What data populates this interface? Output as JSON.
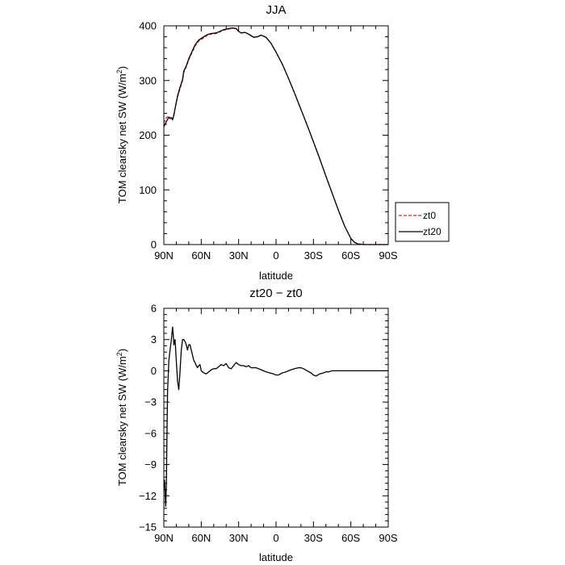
{
  "chart_data": [
    {
      "type": "line",
      "title": "JJA",
      "xlabel": "latitude",
      "ylabel": "TOM clearsky net SW (W/m",
      "ylabel_sup": "2",
      "ylabel_end": ")",
      "xlim": [
        90,
        -90
      ],
      "ylim": [
        0,
        400
      ],
      "xticks": [
        {
          "value": 90,
          "label": "90N"
        },
        {
          "value": 60,
          "label": "60N"
        },
        {
          "value": 30,
          "label": "30N"
        },
        {
          "value": 0,
          "label": "0"
        },
        {
          "value": -30,
          "label": "30S"
        },
        {
          "value": -60,
          "label": "60S"
        },
        {
          "value": -90,
          "label": "90S"
        }
      ],
      "yticks": [
        {
          "value": 0,
          "label": "0"
        },
        {
          "value": 100,
          "label": "100"
        },
        {
          "value": 200,
          "label": "200"
        },
        {
          "value": 300,
          "label": "300"
        },
        {
          "value": 400,
          "label": "400"
        }
      ],
      "legend_position": "outside-right",
      "series": [
        {
          "name": "zt0",
          "color": "#d62728",
          "dash": true,
          "x": [
            90,
            89,
            88,
            86,
            85,
            84,
            83,
            82,
            81,
            79,
            77,
            75,
            74,
            72,
            70,
            68,
            65,
            62,
            58,
            55,
            52,
            48,
            45,
            42,
            38,
            35,
            32,
            30,
            28,
            25,
            22,
            20,
            18,
            15,
            12,
            8,
            4,
            0,
            -5,
            -10,
            -15,
            -20,
            -25,
            -30,
            -35,
            -40,
            -45,
            -50,
            -55,
            -60,
            -63,
            -66,
            -70,
            -75,
            -80,
            -85,
            -90
          ],
          "y": [
            222,
            227,
            232,
            235,
            230,
            233,
            230,
            238,
            248,
            270,
            285,
            300,
            315,
            325,
            338,
            348,
            363,
            372,
            378,
            383,
            385,
            386,
            389,
            392,
            394,
            396,
            395,
            390,
            387,
            388,
            385,
            382,
            379,
            380,
            383,
            379,
            368,
            352,
            330,
            304,
            276,
            247,
            218,
            188,
            157,
            125,
            94,
            63,
            34,
            11,
            4,
            1,
            0,
            0,
            0,
            0,
            0
          ]
        },
        {
          "name": "zt20",
          "color": "#000000",
          "dash": false,
          "x": [
            90,
            89,
            88,
            86,
            85,
            84,
            83,
            82,
            81,
            79,
            77,
            75,
            74,
            72,
            70,
            68,
            65,
            62,
            58,
            55,
            52,
            48,
            45,
            42,
            38,
            35,
            32,
            30,
            28,
            25,
            22,
            20,
            18,
            15,
            12,
            8,
            4,
            0,
            -5,
            -10,
            -15,
            -20,
            -25,
            -30,
            -35,
            -40,
            -45,
            -50,
            -55,
            -60,
            -63,
            -66,
            -70,
            -75,
            -80,
            -85,
            -90
          ],
          "y": [
            215,
            220,
            225,
            233,
            231,
            232,
            228,
            236,
            249,
            272,
            288,
            302,
            317,
            327,
            340,
            350,
            365,
            374,
            380,
            384,
            386,
            387,
            390,
            393,
            395,
            396,
            395,
            390,
            387,
            388,
            385,
            382,
            379,
            380,
            383,
            379,
            368,
            352,
            330,
            304,
            276,
            247,
            218,
            188,
            157,
            125,
            94,
            63,
            34,
            11,
            4,
            1,
            0,
            0,
            0,
            0,
            0
          ]
        }
      ]
    },
    {
      "type": "line",
      "title": "zt20 − zt0",
      "xlabel": "latitude",
      "ylabel": "TOM clearsky net SW (W/m",
      "ylabel_sup": "2",
      "ylabel_end": ")",
      "xlim": [
        90,
        -90
      ],
      "ylim": [
        -15,
        6
      ],
      "xticks": [
        {
          "value": 90,
          "label": "90N"
        },
        {
          "value": 60,
          "label": "60N"
        },
        {
          "value": 30,
          "label": "30N"
        },
        {
          "value": 0,
          "label": "0"
        },
        {
          "value": -30,
          "label": "30S"
        },
        {
          "value": -60,
          "label": "60S"
        },
        {
          "value": -90,
          "label": "90S"
        }
      ],
      "yticks": [
        {
          "value": 6,
          "label": "6"
        },
        {
          "value": 3,
          "label": "3"
        },
        {
          "value": 0,
          "label": "0"
        },
        {
          "value": -3,
          "label": "−3"
        },
        {
          "value": -6,
          "label": "−6"
        },
        {
          "value": -9,
          "label": "−9"
        },
        {
          "value": -12,
          "label": "−12"
        },
        {
          "value": -15,
          "label": "−15"
        }
      ],
      "series": [
        {
          "color": "#000000",
          "dash": false,
          "x": [
            90,
            89.5,
            89,
            88.5,
            88,
            87.5,
            87,
            86,
            85,
            84,
            83,
            82.5,
            82,
            81,
            80,
            79,
            78,
            77,
            76,
            75,
            74,
            73,
            72,
            71,
            70,
            69,
            68,
            67,
            66,
            65,
            64,
            63,
            62,
            61,
            60,
            58,
            56,
            54,
            52,
            50,
            48,
            46,
            44,
            42,
            40,
            38,
            36,
            34,
            32,
            30,
            28,
            26,
            24,
            22,
            20,
            18,
            16,
            14,
            12,
            10,
            8,
            5,
            2,
            0,
            -2,
            -5,
            -8,
            -10,
            -12,
            -15,
            -18,
            -20,
            -22,
            -25,
            -28,
            -30,
            -32,
            -35,
            -38,
            -40,
            -42,
            -45,
            -48,
            -50,
            -52,
            -55,
            -58,
            -60,
            -62,
            -65,
            -70,
            -75,
            -80,
            -85,
            -90
          ],
          "y": [
            -11,
            -10.5,
            -11.5,
            -13,
            -11,
            -6,
            -2,
            1,
            2,
            3,
            4.2,
            3.5,
            2.5,
            3,
            1,
            -1,
            -1.8,
            0,
            2,
            3,
            3,
            2.8,
            2.5,
            2,
            2.5,
            2.5,
            2,
            1.5,
            1,
            0.8,
            0.5,
            0.3,
            0.5,
            0.6,
            0,
            -0.2,
            -0.3,
            -0.1,
            0.1,
            0.2,
            0.2,
            0.4,
            0.6,
            0.5,
            0.7,
            0.3,
            0.2,
            0.5,
            0.8,
            0.6,
            0.5,
            0.5,
            0.4,
            0.5,
            0.3,
            0.3,
            0.3,
            0.2,
            0.1,
            0,
            -0.1,
            -0.2,
            -0.3,
            -0.4,
            -0.4,
            -0.2,
            -0.1,
            0,
            0.1,
            0.2,
            0.3,
            0.3,
            0.2,
            0,
            -0.2,
            -0.4,
            -0.5,
            -0.3,
            -0.2,
            -0.1,
            -0.1,
            0,
            0,
            0,
            0,
            0,
            0,
            0,
            0,
            0,
            0,
            0,
            0,
            0,
            0
          ]
        }
      ]
    }
  ]
}
